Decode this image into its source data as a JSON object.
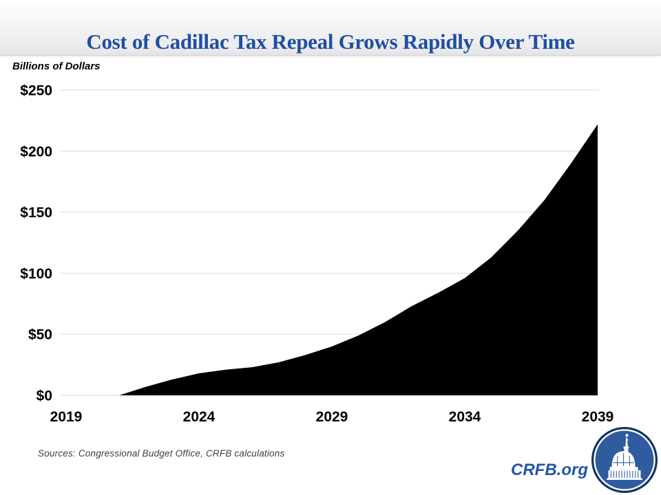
{
  "header": {
    "title": "Cost of Cadillac Tax Repeal Grows Rapidly Over Time"
  },
  "chart_data": {
    "type": "area",
    "title": "Cost of Cadillac Tax Repeal Grows Rapidly Over Time",
    "unit_label": "Billions of Dollars",
    "xlabel": "",
    "ylabel": "Billions of Dollars",
    "x": [
      2019,
      2020,
      2021,
      2022,
      2023,
      2024,
      2025,
      2026,
      2027,
      2028,
      2029,
      2030,
      2031,
      2032,
      2033,
      2034,
      2035,
      2036,
      2037,
      2038,
      2039
    ],
    "values": [
      0,
      0,
      0,
      7,
      13,
      18,
      21,
      23,
      27,
      33,
      40,
      49,
      60,
      73,
      84,
      96,
      113,
      135,
      160,
      190,
      222
    ],
    "xlim": [
      2019,
      2039
    ],
    "ylim": [
      0,
      250
    ],
    "xticks": [
      2019,
      2024,
      2029,
      2034,
      2039
    ],
    "xtick_labels": [
      "2019",
      "2024",
      "2029",
      "2034",
      "2039"
    ],
    "yticks": [
      0,
      50,
      100,
      150,
      200,
      250
    ],
    "ytick_labels": [
      "$0",
      "$50",
      "$100",
      "$150",
      "$200",
      "$250"
    ],
    "grid": "horizontal",
    "legend": "none",
    "fill_color": "#000000"
  },
  "footer": {
    "sources": "Sources: Congressional Budget Office, CRFB calculations",
    "site": "CRFB.org"
  },
  "logo": {
    "name": "CRFB capitol dome logo",
    "outer_ring_color": "#16355E",
    "inner_fill_color": "#2E5C9E"
  },
  "colors": {
    "title_blue": "#1F4EA5",
    "site_blue": "#2356A7",
    "gridline": "#D9D9D9",
    "area": "#000000",
    "axis_text": "#000000"
  }
}
